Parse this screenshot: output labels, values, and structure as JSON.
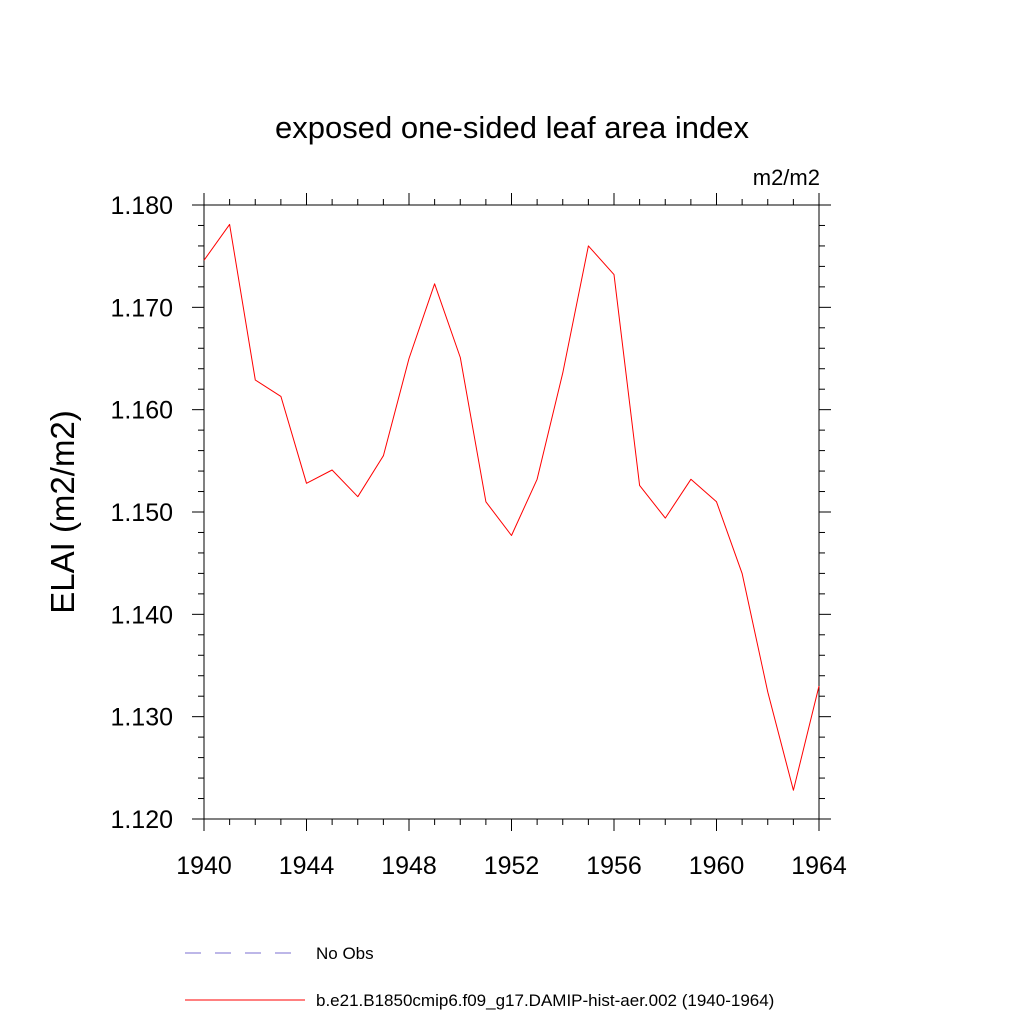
{
  "chart_data": {
    "type": "line",
    "title": "exposed one-sided leaf area index",
    "units_label": "m2/m2",
    "xlabel": "",
    "ylabel": "ELAI  (m2/m2)",
    "xlim": [
      1940,
      1964
    ],
    "ylim": [
      1.12,
      1.18
    ],
    "x_ticks": [
      1940,
      1944,
      1948,
      1952,
      1956,
      1960,
      1964
    ],
    "x_tick_labels": [
      "1940",
      "1944",
      "1948",
      "1952",
      "1956",
      "1960",
      "1964"
    ],
    "y_ticks": [
      1.12,
      1.13,
      1.14,
      1.15,
      1.16,
      1.17,
      1.18
    ],
    "y_tick_labels": [
      "1.120",
      "1.130",
      "1.140",
      "1.150",
      "1.160",
      "1.170",
      "1.180"
    ],
    "grid": false,
    "legend_position": "bottom",
    "series": [
      {
        "name": "b.e21.B1850cmip6.f09_g17.DAMIP-hist-aer.002 (1940-1964)",
        "color": "#ff0000",
        "style": "solid",
        "x": [
          1940,
          1941,
          1942,
          1943,
          1944,
          1945,
          1946,
          1947,
          1948,
          1949,
          1950,
          1951,
          1952,
          1953,
          1954,
          1955,
          1956,
          1957,
          1958,
          1959,
          1960,
          1961,
          1962,
          1963,
          1964
        ],
        "y": [
          1.1746,
          1.1781,
          1.1629,
          1.1613,
          1.1528,
          1.1541,
          1.1515,
          1.1555,
          1.165,
          1.1723,
          1.1651,
          1.151,
          1.1477,
          1.1532,
          1.1636,
          1.176,
          1.1732,
          1.1526,
          1.1494,
          1.1532,
          1.151,
          1.144,
          1.1324,
          1.1228,
          1.133
        ]
      }
    ],
    "legend": [
      {
        "label": "No Obs",
        "color": "#7b6fd0",
        "style": "dashed"
      },
      {
        "label": "b.e21.B1850cmip6.f09_g17.DAMIP-hist-aer.002 (1940-1964)",
        "color": "#ff0000",
        "style": "solid"
      }
    ]
  }
}
